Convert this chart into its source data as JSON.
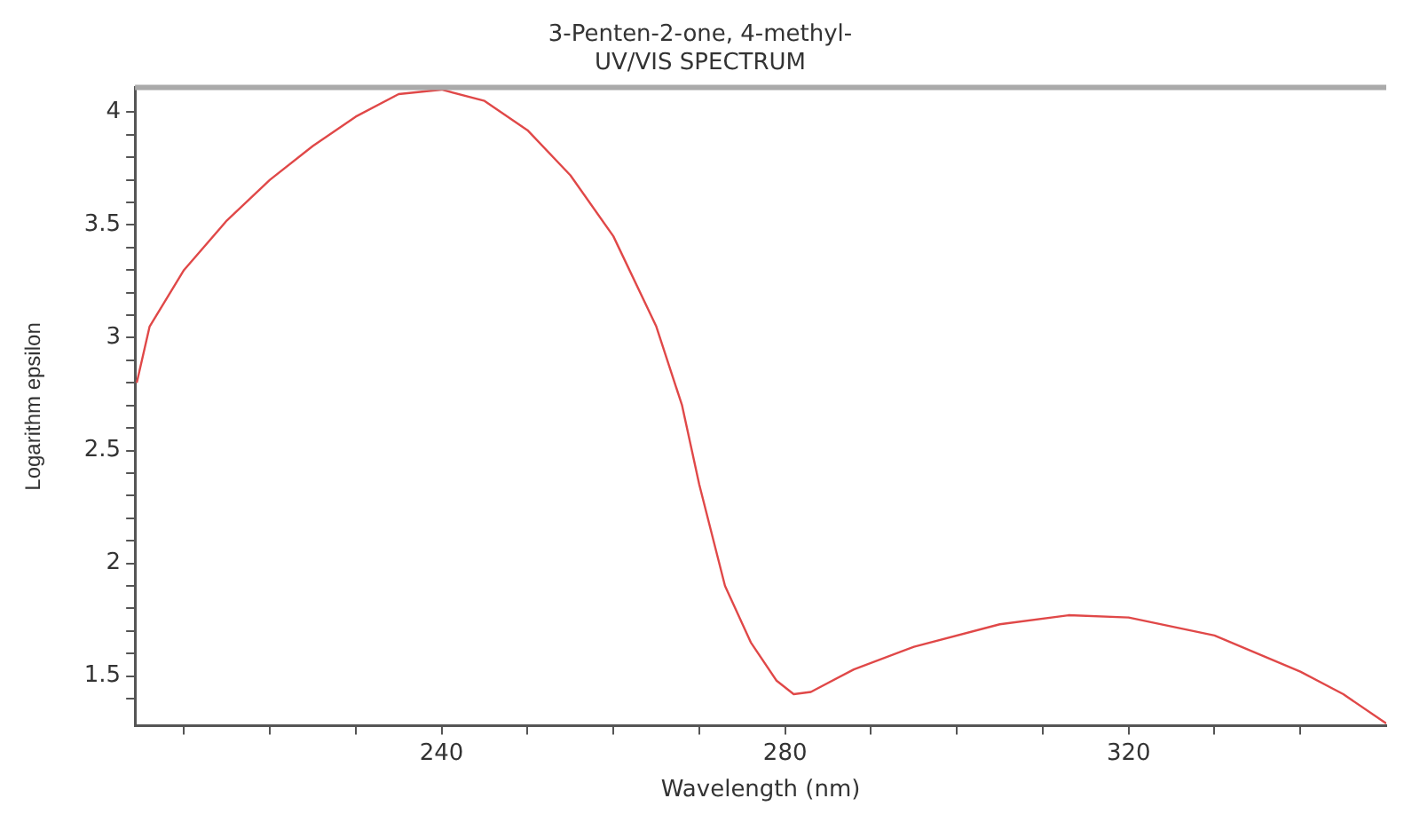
{
  "chart_data": {
    "type": "line",
    "title": "3-Penten-2-one, 4-methyl-",
    "subtitle": "UV/VIS SPECTRUM",
    "xlabel": "Wavelength (nm)",
    "ylabel": "Logarithm epsilon",
    "xlim": [
      204.3,
      350
    ],
    "ylim": [
      1.28,
      4.11
    ],
    "xticks": [
      {
        "value": 210,
        "label": null
      },
      {
        "value": 220,
        "label": null
      },
      {
        "value": 230,
        "label": null
      },
      240,
      {
        "value": 250,
        "label": null
      },
      {
        "value": 260,
        "label": null
      },
      {
        "value": 270,
        "label": null
      },
      280,
      {
        "value": 290,
        "label": null
      },
      {
        "value": 300,
        "label": null
      },
      {
        "value": 310,
        "label": null
      },
      320,
      {
        "value": 330,
        "label": null
      },
      {
        "value": 340,
        "label": null
      }
    ],
    "yticks": [
      {
        "value": 1.4,
        "label": null
      },
      1.5,
      {
        "value": 1.6,
        "label": null
      },
      {
        "value": 1.7,
        "label": null
      },
      {
        "value": 1.8,
        "label": null
      },
      {
        "value": 1.9,
        "label": null
      },
      2,
      {
        "value": 2.1,
        "label": null
      },
      {
        "value": 2.2,
        "label": null
      },
      {
        "value": 2.3,
        "label": null
      },
      {
        "value": 2.4,
        "label": null
      },
      2.5,
      {
        "value": 2.6,
        "label": null
      },
      {
        "value": 2.7,
        "label": null
      },
      {
        "value": 2.8,
        "label": null
      },
      {
        "value": 2.9,
        "label": null
      },
      3,
      {
        "value": 3.1,
        "label": null
      },
      {
        "value": 3.2,
        "label": null
      },
      {
        "value": 3.3,
        "label": null
      },
      {
        "value": 3.4,
        "label": null
      },
      3.5,
      {
        "value": 3.6,
        "label": null
      },
      {
        "value": 3.7,
        "label": null
      },
      {
        "value": 3.8,
        "label": null
      },
      {
        "value": 3.9,
        "label": null
      },
      4
    ],
    "grid": false,
    "legend": false,
    "marker": "none",
    "line_style": "solid",
    "series": [
      {
        "color": "#e04848",
        "x": [
          204.5,
          206,
          210,
          215,
          220,
          225,
          230,
          235,
          240,
          245,
          250,
          255,
          260,
          265,
          268,
          270,
          273,
          276,
          279,
          281,
          283,
          288,
          295,
          305,
          313,
          320,
          330,
          340,
          345,
          350
        ],
        "values": [
          2.8,
          3.05,
          3.3,
          3.52,
          3.7,
          3.85,
          3.98,
          4.08,
          4.1,
          4.05,
          3.92,
          3.72,
          3.45,
          3.05,
          2.7,
          2.35,
          1.9,
          1.65,
          1.48,
          1.42,
          1.43,
          1.53,
          1.63,
          1.73,
          1.77,
          1.76,
          1.68,
          1.52,
          1.42,
          1.29
        ]
      }
    ]
  }
}
